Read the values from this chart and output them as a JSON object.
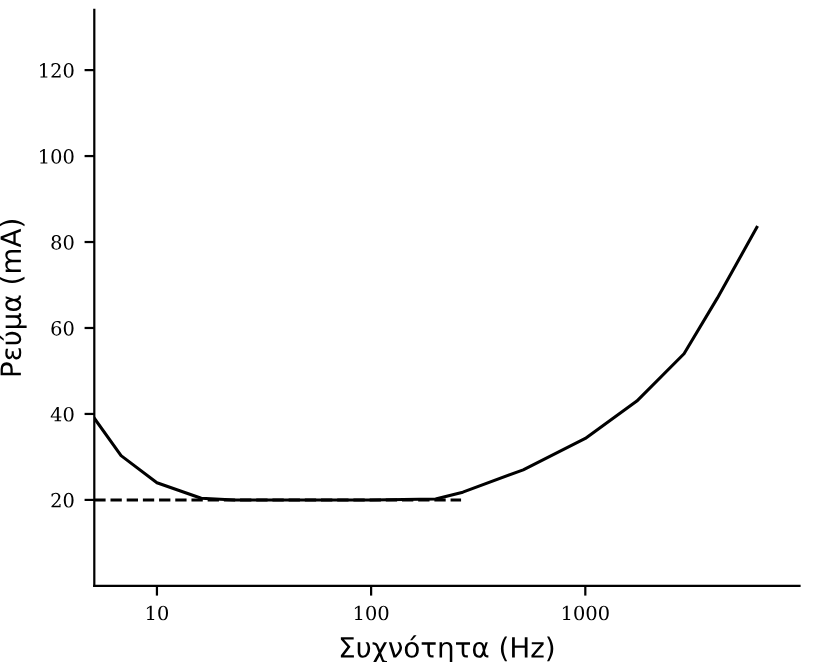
{
  "chart_data": {
    "type": "line",
    "xlabel": "Συχνότητα (Hz)",
    "ylabel": "Ρεύμα (mA)",
    "log": "x",
    "xlim": [
      5.1,
      10000
    ],
    "ylim": [
      0,
      134
    ],
    "xticks": [
      10,
      100,
      1000
    ],
    "yticks": [
      20,
      40,
      60,
      80,
      100,
      120
    ],
    "grid": false,
    "legend": false,
    "marker": "none",
    "series": [
      {
        "color": "#000000",
        "line_style": "solid",
        "x": [
          5.1,
          6.8,
          10,
          16.1,
          23,
          100,
          200,
          268,
          513,
          1000,
          1740,
          2890,
          4140,
          6320
        ],
        "values": [
          39,
          30.3,
          24,
          20.4,
          20,
          20,
          20.2,
          21.8,
          27,
          34.3,
          43,
          54,
          67,
          83.4
        ]
      },
      {
        "color": "#000000",
        "line_style": "dashed",
        "x": [
          5.1,
          263
        ],
        "values": [
          20,
          20
        ]
      }
    ]
  }
}
